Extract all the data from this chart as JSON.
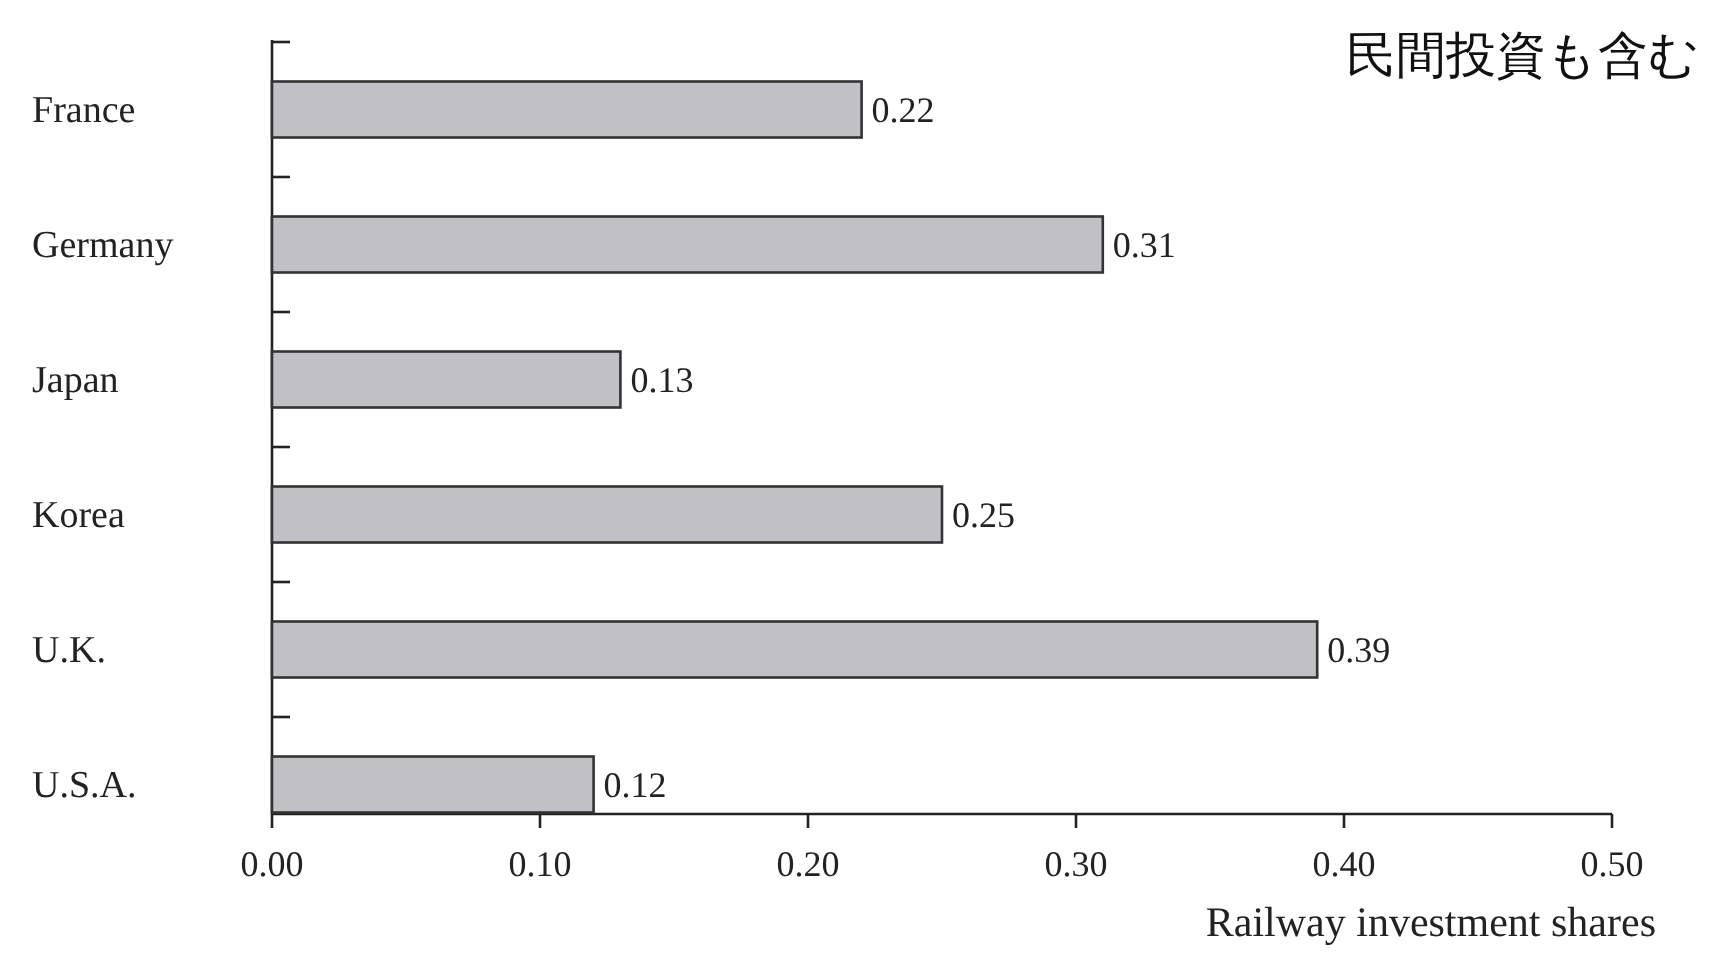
{
  "chart_data": {
    "type": "bar",
    "orientation": "horizontal",
    "categories": [
      "France",
      "Germany",
      "Japan",
      "Korea",
      "U.K.",
      "U.S.A."
    ],
    "values": [
      0.22,
      0.31,
      0.13,
      0.25,
      0.39,
      0.12
    ],
    "color": "#c1c1c5",
    "xlim": [
      0,
      0.5
    ],
    "xticks": [
      {
        "value": 0,
        "label": "0.00"
      },
      {
        "value": 0.1,
        "label": "0.10"
      },
      {
        "value": 0.2,
        "label": "0.20"
      },
      {
        "value": 0.3,
        "label": "0.30"
      },
      {
        "value": 0.4,
        "label": "0.40"
      },
      {
        "value": 0.5,
        "label": "0.50"
      }
    ],
    "xlabel": "Railway investment shares",
    "annotations": [
      "民間投資も含む"
    ],
    "data_labels": true
  }
}
